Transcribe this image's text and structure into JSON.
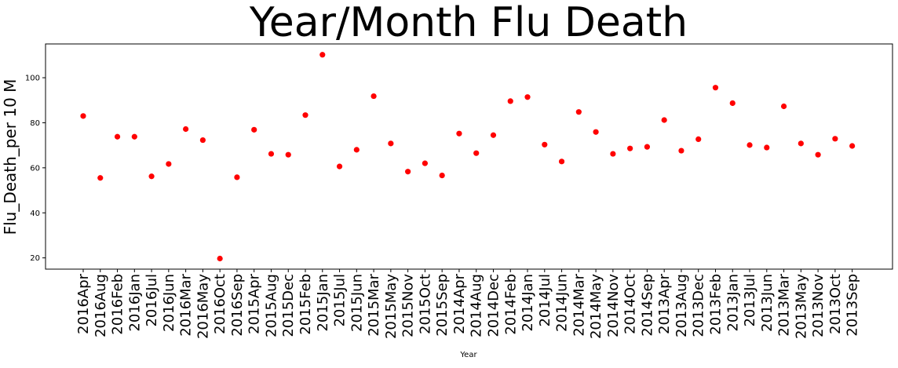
{
  "chart_data": {
    "type": "scatter",
    "title": "Year/Month Flu Death",
    "xlabel": "Year",
    "ylabel": "Flu_Death_per 10 M",
    "ylim": [
      15,
      115
    ],
    "yticks": [
      20,
      40,
      60,
      80,
      100
    ],
    "grid": false,
    "marker_color": "#ff0000",
    "categories": [
      "2016Apr",
      "2016Aug",
      "2016Feb",
      "2016Jan",
      "2016Jul",
      "2016Jun",
      "2016Mar",
      "2016May",
      "2016Oct",
      "2016Sep",
      "2015Apr",
      "2015Aug",
      "2015Dec",
      "2015Feb",
      "2015Jan",
      "2015Jul",
      "2015Jun",
      "2015Mar",
      "2015May",
      "2015Nov",
      "2015Oct",
      "2015Sep",
      "2014Apr",
      "2014Aug",
      "2014Dec",
      "2014Feb",
      "2014Jan",
      "2014Jul",
      "2014Jun",
      "2014Mar",
      "2014May",
      "2014Nov",
      "2014Oct",
      "2014Sep",
      "2013Apr",
      "2013Aug",
      "2013Dec",
      "2013Feb",
      "2013Jan",
      "2013Jul",
      "2013Jun",
      "2013Mar",
      "2013May",
      "2013Nov",
      "2013Oct",
      "2013Sep"
    ],
    "values": [
      83,
      55.5,
      73.8,
      73.8,
      56.2,
      61.7,
      77.2,
      72.3,
      19.7,
      55.8,
      76.9,
      66.2,
      65.8,
      83.4,
      110.2,
      60.6,
      68,
      91.8,
      70.8,
      58.3,
      62,
      56.6,
      75.2,
      66.5,
      74.5,
      89.6,
      91.4,
      70.3,
      62.8,
      84.8,
      75.9,
      66.2,
      68.6,
      69.3,
      81.2,
      67.6,
      72.7,
      95.6,
      88.7,
      70.1,
      69,
      87.3,
      70.8,
      65.8,
      72.9,
      69.7
    ]
  }
}
